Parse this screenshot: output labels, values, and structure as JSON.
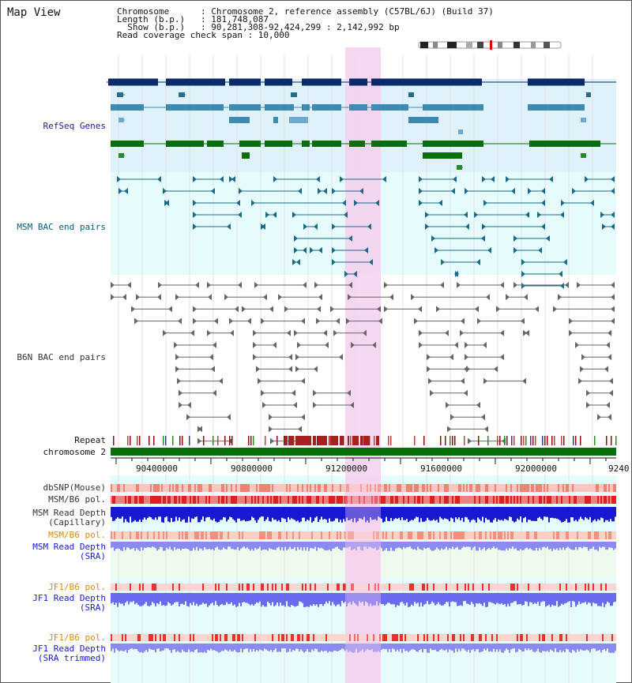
{
  "title": "Map View",
  "header": {
    "lines": [
      "Chromosome      : Chromosome 2, reference assembly (C57BL/6J) (Build 37)",
      "Length (b.p.)   : 181,748,087",
      "  Show (b.p.)   : 90,281,308-92,424,299 : 2,142,992 bp",
      "Read coverage check span : 10,000"
    ]
  },
  "tracks": {
    "refseq": "RefSeq Genes",
    "msm_bac": "MSM BAC end pairs",
    "b6n_bac": "B6N BAC end pairs",
    "repeat": "Repeat",
    "chromosome": "chromosome 2",
    "dbsnp": "dbSNP(Mouse)",
    "msm_b6_pol": "MSM/B6 pol.",
    "msm_depth_cap_1": "MSM Read Depth",
    "msm_depth_cap_2": "(Capillary)",
    "msm_b6_pol_2": "MSM/B6 pol.",
    "msm_depth_sra_1": "MSM Read Depth",
    "msm_depth_sra_2": "(SRA)",
    "jf1_b6_pol": "JF1/B6 pol.",
    "jf1_depth_sra_1": "JF1 Read Depth",
    "jf1_depth_sra_2": "(SRA)",
    "jf1_b6_pol_2": "JF1/B6 pol.",
    "jf1_depth_trim_1": "JF1 Read Depth",
    "jf1_depth_trim_2": "(SRA trimmed)"
  },
  "axis": {
    "ticks": [
      "90400000",
      "90800000",
      "91200000",
      "91600000",
      "92000000",
      "9240"
    ]
  },
  "colors": {
    "refseq_label": "#1a1aa0",
    "msm_label": "#006080",
    "b6n_label": "#333333",
    "pol_orange": "#e08a00",
    "depth_blue": "#1010c0",
    "highlight": "#f5d0ee",
    "refseq_bg": "#dff2fb",
    "chrom_green": "#0a6e0a"
  }
}
